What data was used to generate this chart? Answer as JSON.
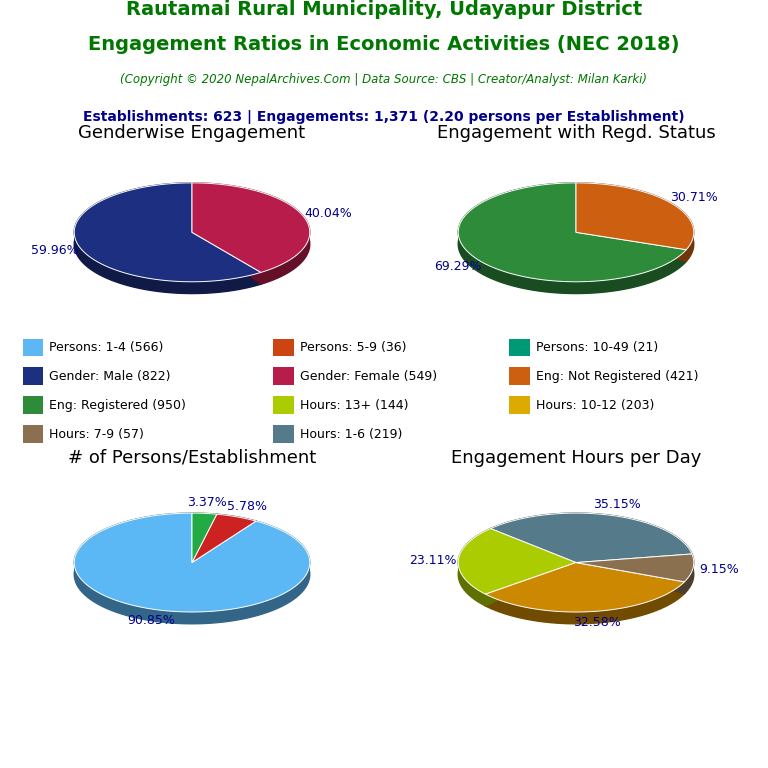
{
  "title_line1": "Rautamai Rural Municipality, Udayapur District",
  "title_line2": "Engagement Ratios in Economic Activities (NEC 2018)",
  "subtitle": "(Copyright © 2020 NepalArchives.Com | Data Source: CBS | Creator/Analyst: Milan Karki)",
  "stats_line": "Establishments: 623 | Engagements: 1,371 (2.20 persons per Establishment)",
  "title_color": "#007700",
  "subtitle_color": "#007700",
  "stats_color": "#00008B",
  "pie1": {
    "title": "Genderwise Engagement",
    "values": [
      59.96,
      40.04
    ],
    "labels": [
      "59.96%",
      "40.04%"
    ],
    "colors": [
      "#1C2F80",
      "#B81C4A"
    ],
    "startangle": 90
  },
  "pie2": {
    "title": "Engagement with Regd. Status",
    "values": [
      69.29,
      30.71
    ],
    "labels": [
      "69.29%",
      "30.71%"
    ],
    "colors": [
      "#2E8B3A",
      "#CC6010"
    ],
    "startangle": 90
  },
  "pie3": {
    "title": "# of Persons/Establishment",
    "values": [
      90.85,
      5.78,
      3.37
    ],
    "labels": [
      "90.85%",
      "5.78%",
      "3.37%"
    ],
    "colors": [
      "#5BB8F5",
      "#CC2222",
      "#22AA44"
    ],
    "startangle": 90
  },
  "pie4": {
    "title": "Engagement Hours per Day",
    "values": [
      35.15,
      23.11,
      32.58,
      9.15
    ],
    "labels": [
      "35.15%",
      "23.11%",
      "32.58%",
      "9.15%"
    ],
    "colors": [
      "#557B8A",
      "#AACC00",
      "#CC8800",
      "#8B7050"
    ],
    "startangle": 10
  },
  "legend_items": [
    {
      "label": "Persons: 1-4 (566)",
      "color": "#5BB8F5"
    },
    {
      "label": "Persons: 5-9 (36)",
      "color": "#CC4411"
    },
    {
      "label": "Persons: 10-49 (21)",
      "color": "#009977"
    },
    {
      "label": "Gender: Male (822)",
      "color": "#1C2F80"
    },
    {
      "label": "Gender: Female (549)",
      "color": "#B81C4A"
    },
    {
      "label": "Eng: Not Registered (421)",
      "color": "#CC6010"
    },
    {
      "label": "Eng: Registered (950)",
      "color": "#2E8B3A"
    },
    {
      "label": "Hours: 13+ (144)",
      "color": "#AACC00"
    },
    {
      "label": "Hours: 10-12 (203)",
      "color": "#DDAA00"
    },
    {
      "label": "Hours: 7-9 (57)",
      "color": "#8B7050"
    },
    {
      "label": "Hours: 1-6 (219)",
      "color": "#557B8A"
    }
  ],
  "bg_color": "#FFFFFF",
  "label_color": "#00008B",
  "pie_title_fontsize": 13,
  "yscale": 0.42,
  "depth": 0.1
}
